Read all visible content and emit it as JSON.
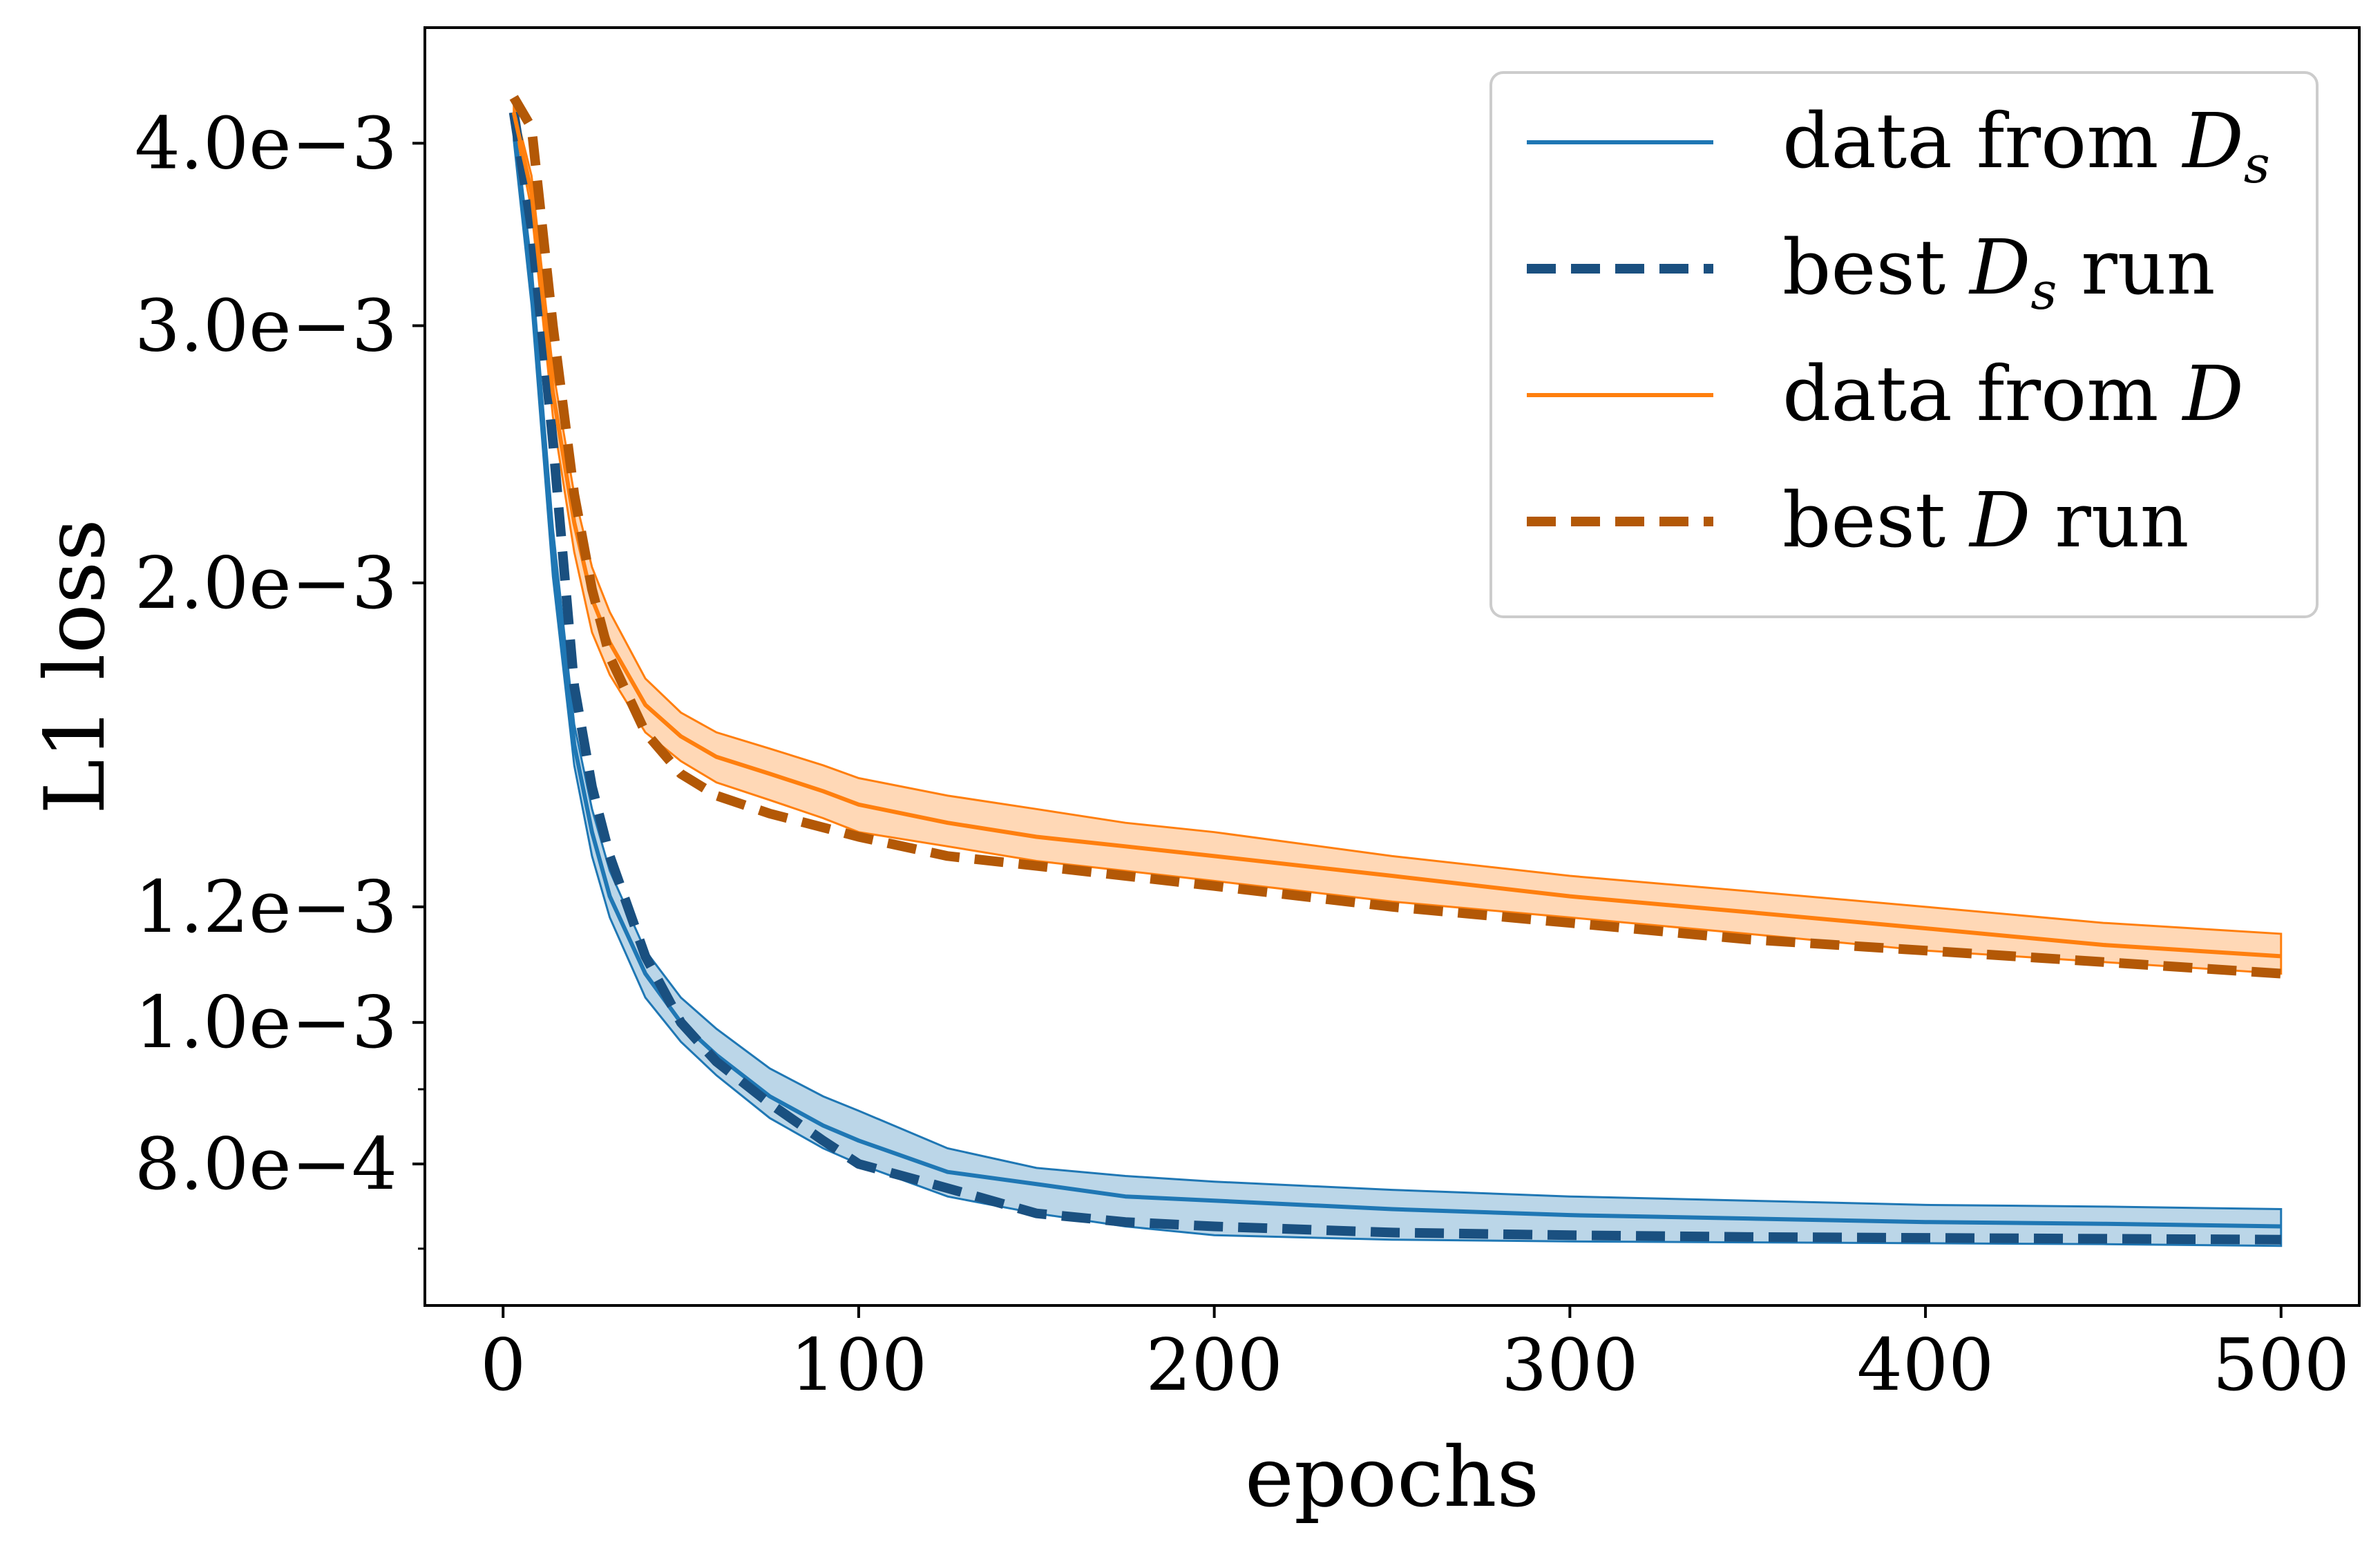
{
  "chart_data": {
    "type": "line",
    "xlabel": "epochs",
    "ylabel": "L1 loss",
    "xlim": [
      -22,
      522
    ],
    "ylim": [
      0.00064,
      0.0048
    ],
    "yscale": "log",
    "grid": false,
    "legend_position": "top-right",
    "x_ticks": [
      0,
      100,
      200,
      300,
      400,
      500
    ],
    "x_tick_labels": [
      "0",
      "100",
      "200",
      "300",
      "400",
      "500"
    ],
    "y_ticks": [
      0.004,
      0.003,
      0.002,
      0.0012,
      0.001,
      0.0008
    ],
    "y_tick_labels": [
      "4.0e−3",
      "3.0e−3",
      "2.0e−3",
      "1.2e−3",
      "1.0e−3",
      "8.0e−4"
    ],
    "y_minor_ticks": [
      0.0009,
      0.0007
    ],
    "x": [
      3,
      8,
      14,
      20,
      25,
      30,
      40,
      50,
      60,
      75,
      90,
      100,
      125,
      150,
      175,
      200,
      250,
      300,
      350,
      400,
      450,
      500
    ],
    "series": [
      {
        "name": "data from ",
        "math": "D",
        "sub": "s",
        "style": "solid",
        "color": "#1f77b4",
        "values": [
          0.0041,
          0.0032,
          0.0021,
          0.00155,
          0.00135,
          0.00122,
          0.00108,
          0.001,
          0.00095,
          0.00089,
          0.00085,
          0.00083,
          0.00079,
          0.000775,
          0.00076,
          0.000755,
          0.000745,
          0.000738,
          0.000734,
          0.00073,
          0.000728,
          0.000725
        ],
        "band_upper": [
          0.00418,
          0.0033,
          0.00218,
          0.0016,
          0.0014,
          0.00127,
          0.00112,
          0.00104,
          0.00099,
          0.00093,
          0.00089,
          0.00087,
          0.00082,
          0.000795,
          0.000785,
          0.000778,
          0.000768,
          0.00076,
          0.000755,
          0.00075,
          0.000748,
          0.000745
        ],
        "band_lower": [
          0.00402,
          0.0031,
          0.00202,
          0.0015,
          0.0013,
          0.00118,
          0.00104,
          0.00097,
          0.00092,
          0.00086,
          0.00082,
          0.0008,
          0.00076,
          0.00074,
          0.000725,
          0.000715,
          0.00071,
          0.000708,
          0.000707,
          0.000706,
          0.000705,
          0.000703
        ]
      },
      {
        "name": "best ",
        "math": "D",
        "sub": "s",
        "suffix": " run",
        "style": "dashed",
        "color": "#1a5080",
        "values": [
          0.0042,
          0.0035,
          0.0025,
          0.0017,
          0.00145,
          0.0013,
          0.00111,
          0.001,
          0.00094,
          0.00088,
          0.00083,
          0.0008,
          0.00077,
          0.00074,
          0.00073,
          0.000725,
          0.000718,
          0.000715,
          0.000713,
          0.000712,
          0.000711,
          0.00071
        ]
      },
      {
        "name": "data from ",
        "math": "D",
        "style": "solid",
        "color": "#ff7f0e",
        "values": [
          0.0042,
          0.0037,
          0.0027,
          0.0022,
          0.00195,
          0.00182,
          0.00165,
          0.00157,
          0.00152,
          0.00148,
          0.00144,
          0.00141,
          0.00137,
          0.00134,
          0.00132,
          0.0013,
          0.00126,
          0.00122,
          0.00119,
          0.00116,
          0.00113,
          0.00111
        ],
        "band_upper": [
          0.00425,
          0.0038,
          0.0028,
          0.0023,
          0.00205,
          0.00191,
          0.00172,
          0.00163,
          0.00158,
          0.00154,
          0.0015,
          0.00147,
          0.00143,
          0.0014,
          0.00137,
          0.00135,
          0.0013,
          0.00126,
          0.00123,
          0.0012,
          0.00117,
          0.00115
        ],
        "band_lower": [
          0.00415,
          0.0036,
          0.0026,
          0.0021,
          0.00185,
          0.00173,
          0.00158,
          0.00151,
          0.00146,
          0.00142,
          0.00138,
          0.00135,
          0.00132,
          0.00129,
          0.00127,
          0.00125,
          0.00121,
          0.00118,
          0.00115,
          0.00112,
          0.0011,
          0.00108
        ]
      },
      {
        "name": "best ",
        "math": "D",
        "suffix": " run",
        "style": "dashed",
        "color": "#b35806",
        "values": [
          0.0043,
          0.0041,
          0.003,
          0.0023,
          0.00198,
          0.00178,
          0.00158,
          0.00148,
          0.00143,
          0.00139,
          0.00136,
          0.00134,
          0.0013,
          0.00128,
          0.00126,
          0.00124,
          0.0012,
          0.00117,
          0.00114,
          0.00112,
          0.0011,
          0.00108
        ]
      }
    ]
  }
}
